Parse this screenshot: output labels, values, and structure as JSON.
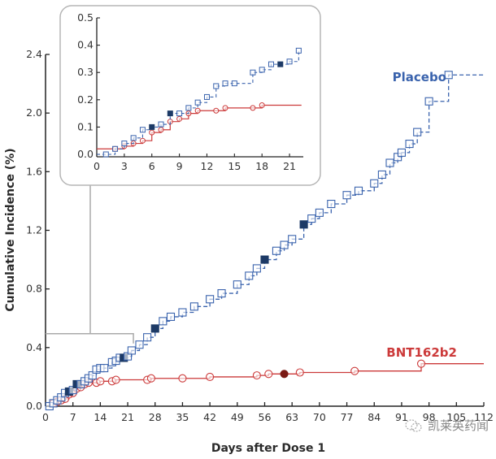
{
  "chart_data": {
    "type": "line",
    "subtype": "step-cumulative-incidence",
    "title": "",
    "xlabel": "Days after Dose 1",
    "ylabel": "Cumulative Incidence (%)",
    "xlim": [
      0,
      112
    ],
    "ylim": [
      0,
      2.4
    ],
    "x_ticks": [
      0,
      7,
      14,
      21,
      28,
      35,
      42,
      49,
      56,
      63,
      70,
      77,
      84,
      91,
      98,
      105,
      112
    ],
    "y_ticks": [
      "0.0",
      "0.4",
      "0.8",
      "1.2",
      "1.6",
      "2.0",
      "2.4"
    ],
    "y_tick_values": [
      0,
      0.4,
      0.8,
      1.2,
      1.6,
      2.0,
      2.4
    ],
    "grid": false,
    "legend": "inline labels at curve ends",
    "series": [
      {
        "name": "Placebo",
        "color": "#3a63ad",
        "dark_marker_color": "#1d3a66",
        "line_style": "dashed",
        "marker": "square",
        "label_position": "top-right",
        "points": [
          [
            1,
            0.0
          ],
          [
            2,
            0.02
          ],
          [
            3,
            0.04
          ],
          [
            4,
            0.06
          ],
          [
            5,
            0.09
          ],
          [
            6,
            0.1
          ],
          [
            7,
            0.11
          ],
          [
            8,
            0.15
          ],
          [
            9,
            0.15
          ],
          [
            10,
            0.17
          ],
          [
            11,
            0.19
          ],
          [
            12,
            0.21
          ],
          [
            13,
            0.25
          ],
          [
            14,
            0.26
          ],
          [
            15,
            0.26
          ],
          [
            17,
            0.3
          ],
          [
            18,
            0.31
          ],
          [
            19,
            0.33
          ],
          [
            20,
            0.33
          ],
          [
            21,
            0.34
          ],
          [
            22,
            0.38
          ],
          [
            24,
            0.42
          ],
          [
            26,
            0.47
          ],
          [
            28,
            0.53
          ],
          [
            30,
            0.58
          ],
          [
            32,
            0.61
          ],
          [
            35,
            0.64
          ],
          [
            38,
            0.68
          ],
          [
            42,
            0.73
          ],
          [
            45,
            0.77
          ],
          [
            49,
            0.83
          ],
          [
            52,
            0.89
          ],
          [
            54,
            0.94
          ],
          [
            56,
            1.0
          ],
          [
            59,
            1.06
          ],
          [
            61,
            1.1
          ],
          [
            63,
            1.14
          ],
          [
            66,
            1.24
          ],
          [
            68,
            1.28
          ],
          [
            70,
            1.32
          ],
          [
            73,
            1.38
          ],
          [
            77,
            1.44
          ],
          [
            80,
            1.47
          ],
          [
            84,
            1.52
          ],
          [
            86,
            1.58
          ],
          [
            88,
            1.66
          ],
          [
            90,
            1.7
          ],
          [
            91,
            1.73
          ],
          [
            93,
            1.79
          ],
          [
            95,
            1.87
          ],
          [
            98,
            2.08
          ],
          [
            103,
            2.26
          ],
          [
            112,
            2.26
          ]
        ],
        "dark_markers_days": [
          6,
          8,
          20,
          28,
          56,
          66
        ]
      },
      {
        "name": "BNT162b2",
        "color": "#cc3a3a",
        "dark_marker_color": "#7a1a14",
        "line_style": "solid",
        "marker": "circle",
        "label_position": "right",
        "points": [
          [
            2,
            0.02
          ],
          [
            3,
            0.03
          ],
          [
            4,
            0.04
          ],
          [
            5,
            0.05
          ],
          [
            6,
            0.08
          ],
          [
            7,
            0.09
          ],
          [
            8,
            0.12
          ],
          [
            9,
            0.13
          ],
          [
            10,
            0.15
          ],
          [
            11,
            0.16
          ],
          [
            13,
            0.16
          ],
          [
            14,
            0.17
          ],
          [
            17,
            0.17
          ],
          [
            18,
            0.18
          ],
          [
            26,
            0.18
          ],
          [
            27,
            0.19
          ],
          [
            35,
            0.19
          ],
          [
            42,
            0.2
          ],
          [
            54,
            0.21
          ],
          [
            57,
            0.22
          ],
          [
            61,
            0.22
          ],
          [
            65,
            0.23
          ],
          [
            79,
            0.24
          ],
          [
            96,
            0.29
          ],
          [
            112,
            0.29
          ]
        ],
        "dark_markers_days": [
          61
        ]
      }
    ],
    "inset": {
      "xlim": [
        0,
        22.5
      ],
      "ylim": [
        0,
        0.5
      ],
      "x_ticks": [
        0,
        3,
        6,
        9,
        12,
        15,
        18,
        21
      ],
      "y_ticks": [
        "0.0",
        "0.1",
        "0.2",
        "0.3",
        "0.4",
        "0.5"
      ],
      "y_tick_values": [
        0,
        0.1,
        0.2,
        0.3,
        0.4,
        0.5
      ],
      "zoom_region": {
        "x": [
          0,
          21
        ],
        "y": [
          0,
          0.5
        ]
      }
    }
  },
  "watermark": {
    "text": "凯莱英药闻",
    "icon": "wechat-icon"
  }
}
